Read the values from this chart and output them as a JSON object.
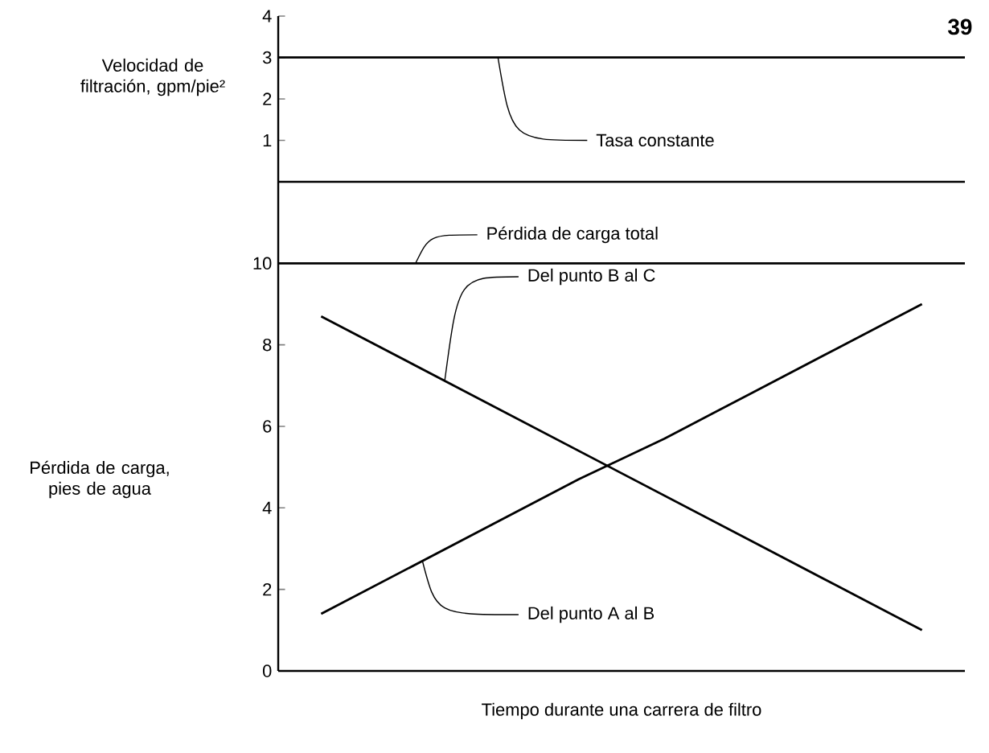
{
  "chart_data": [
    {
      "type": "line",
      "ylabel": "Velocidad de filtración, gpm/pie²",
      "categories": [
        null,
        null,
        null,
        null,
        null,
        null,
        null,
        null
      ],
      "ylim": [
        0,
        4
      ],
      "yticks": [
        1,
        2,
        3,
        4
      ],
      "tick_labels": "y",
      "annotations": [
        "39"
      ],
      "ref_lines": [
        {
          "axis": "y",
          "value": 3,
          "label": "Tasa constante",
          "color": "#000000"
        }
      ]
    },
    {
      "type": "line",
      "ylabel": "Pérdida de carga, pies de agua",
      "xlabel": "Tiempo durante una carrera de filtro",
      "categories": [
        null,
        null,
        null,
        null,
        null,
        null,
        null,
        null
      ],
      "ylim": [
        0,
        12
      ],
      "yticks": [
        0,
        2,
        4,
        6,
        8,
        10
      ],
      "tick_labels": "y",
      "series": [
        {
          "name": "Del punto B al C",
          "color": "#000000",
          "values": [
            8.7,
            7.6,
            6.5,
            5.4,
            4.3,
            3.2,
            2.1,
            1.0
          ]
        },
        {
          "name": "Del punto A al B",
          "color": "#000000",
          "values": [
            1.4,
            2.5,
            3.6,
            4.7,
            5.7,
            6.8,
            7.9,
            9.0
          ]
        }
      ],
      "ref_lines": [
        {
          "axis": "y",
          "value": 10,
          "label": "Pérdida de carga total",
          "color": "#000000"
        }
      ]
    }
  ]
}
